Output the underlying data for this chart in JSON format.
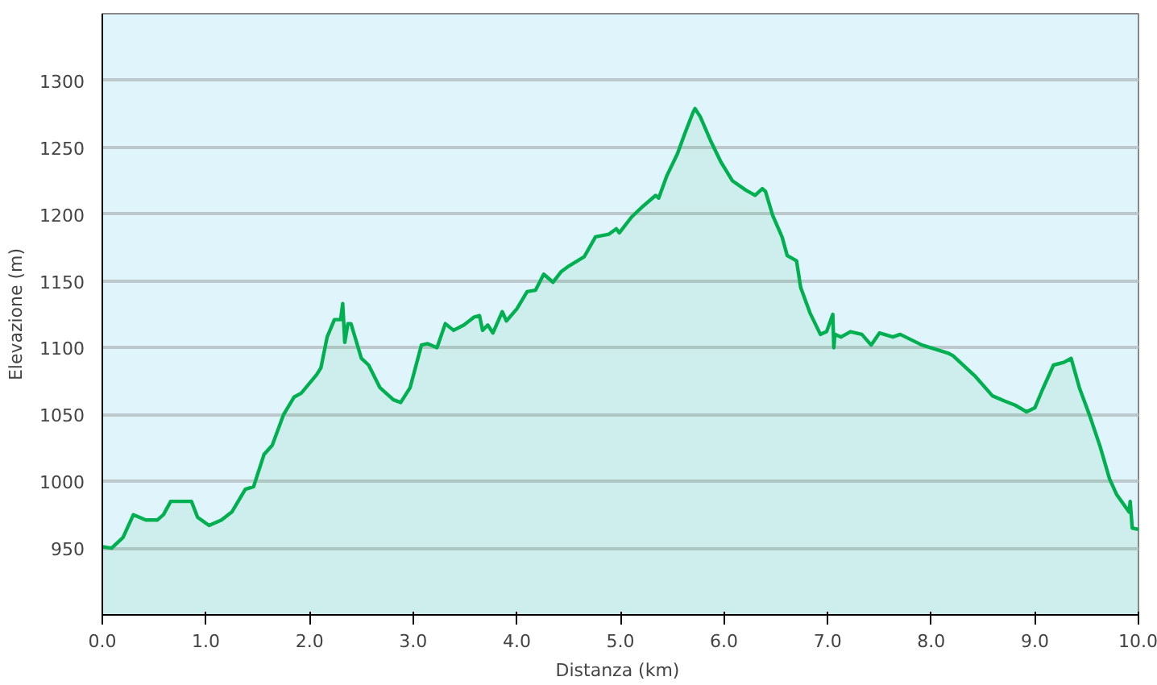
{
  "chart_data": {
    "type": "area",
    "xlabel": "Distanza  (km)",
    "ylabel": "Elevazione (m)",
    "x": [
      0,
      0.09,
      0.2,
      0.3,
      0.42,
      0.53,
      0.59,
      0.66,
      0.86,
      0.92,
      1.03,
      1.15,
      1.25,
      1.38,
      1.46,
      1.56,
      1.64,
      1.75,
      1.85,
      1.92,
      2.07,
      2.11,
      2.17,
      2.24,
      2.3,
      2.32,
      2.34,
      2.37,
      2.4,
      2.5,
      2.57,
      2.68,
      2.81,
      2.88,
      2.97,
      3.08,
      3.14,
      3.23,
      3.31,
      3.39,
      3.49,
      3.59,
      3.64,
      3.67,
      3.72,
      3.77,
      3.86,
      3.9,
      4.0,
      4.1,
      4.18,
      4.26,
      4.35,
      4.43,
      4.5,
      4.65,
      4.76,
      4.89,
      4.96,
      4.99,
      5.11,
      5.22,
      5.34,
      5.37,
      5.45,
      5.55,
      5.62,
      5.7,
      5.72,
      5.77,
      5.87,
      5.97,
      6.08,
      6.21,
      6.3,
      6.37,
      6.4,
      6.47,
      6.56,
      6.61,
      6.7,
      6.74,
      6.83,
      6.93,
      6.99,
      7.05,
      7.06,
      7.07,
      7.13,
      7.22,
      7.33,
      7.42,
      7.5,
      7.63,
      7.7,
      7.91,
      8.16,
      8.21,
      8.42,
      8.59,
      8.71,
      8.81,
      8.92,
      9.0,
      9.07,
      9.18,
      9.28,
      9.35,
      9.43,
      9.53,
      9.63,
      9.72,
      9.79,
      9.91,
      9.92,
      9.94,
      10.0
    ],
    "series": [
      {
        "color": "#00b050",
        "values": [
          951,
          950,
          958,
          975,
          971,
          971,
          975,
          985,
          985,
          973,
          967,
          971,
          977,
          994,
          996,
          1020,
          1027,
          1050,
          1063,
          1066,
          1080,
          1085,
          1108,
          1121,
          1121,
          1133,
          1104,
          1118,
          1118,
          1092,
          1087,
          1070,
          1061,
          1059,
          1070,
          1102,
          1103,
          1100,
          1118,
          1113,
          1117,
          1123,
          1124,
          1113,
          1117,
          1111,
          1127,
          1120,
          1129,
          1142,
          1143,
          1155,
          1149,
          1157,
          1161,
          1168,
          1183,
          1185,
          1189,
          1186,
          1198,
          1206,
          1214,
          1212,
          1229,
          1245,
          1260,
          1276,
          1279,
          1273,
          1255,
          1239,
          1225,
          1218,
          1214,
          1219,
          1217,
          1199,
          1183,
          1169,
          1165,
          1145,
          1126,
          1110,
          1112,
          1125,
          1100,
          1110,
          1108,
          1112,
          1110,
          1102,
          1111,
          1108,
          1110,
          1102,
          1096,
          1094,
          1079,
          1064,
          1060,
          1057,
          1052,
          1055,
          1068,
          1087,
          1089,
          1092,
          1070,
          1049,
          1026,
          1002,
          990,
          977,
          985,
          965,
          964
        ]
      }
    ],
    "xlim": [
      0,
      10
    ],
    "ylim": [
      900,
      1350
    ],
    "xticks": [
      {
        "value": 0,
        "label": "0.0"
      },
      {
        "value": 1,
        "label": "1.0"
      },
      {
        "value": 2,
        "label": "2.0"
      },
      {
        "value": 3,
        "label": "3.0"
      },
      {
        "value": 4,
        "label": "4.0"
      },
      {
        "value": 5,
        "label": "5.0"
      },
      {
        "value": 6,
        "label": "6.0"
      },
      {
        "value": 7,
        "label": "7.0"
      },
      {
        "value": 8,
        "label": "8.0"
      },
      {
        "value": 9,
        "label": "9.0"
      },
      {
        "value": 10,
        "label": "10.0"
      }
    ],
    "yticks": [
      950,
      1000,
      1050,
      1100,
      1150,
      1200,
      1250,
      1300
    ],
    "grid": "y",
    "line_style": "solid"
  }
}
